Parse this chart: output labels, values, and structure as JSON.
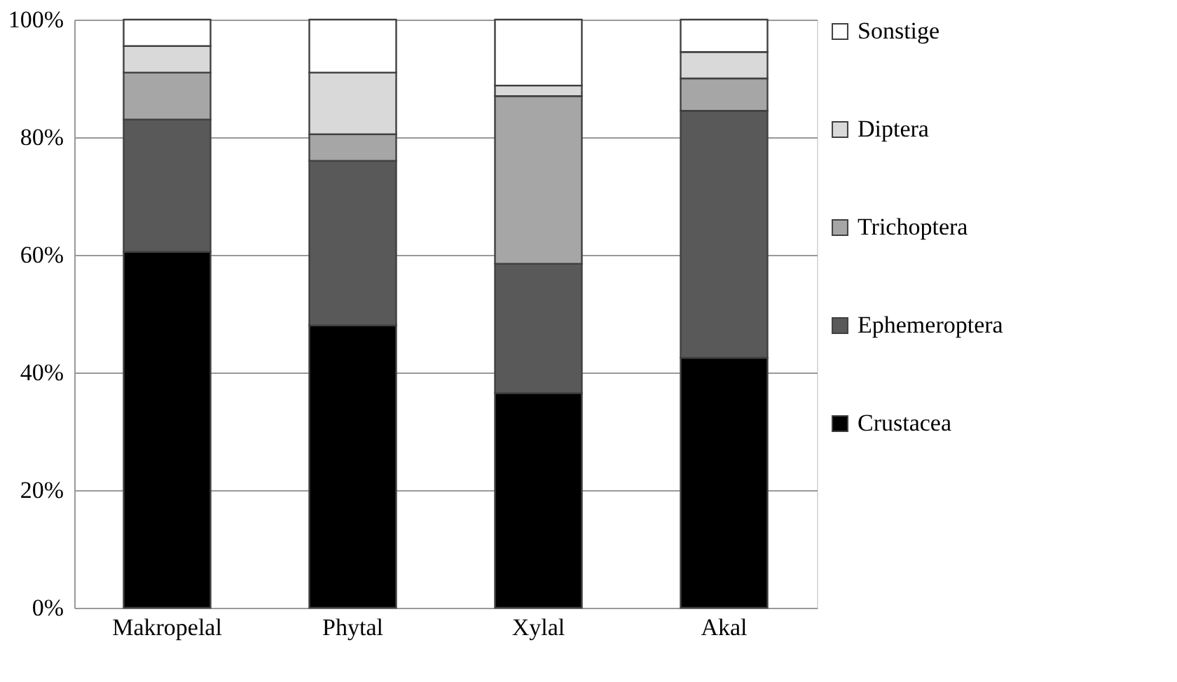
{
  "chart_data": {
    "type": "bar",
    "stacked": true,
    "categories": [
      "Makropelal",
      "Phytal",
      "Xylal",
      "Akal"
    ],
    "series": [
      {
        "name": "Crustacea",
        "color": "#000000",
        "values": [
          60.5,
          48,
          36.5,
          42.5
        ]
      },
      {
        "name": "Ephemeroptera",
        "color": "#595959",
        "values": [
          22.5,
          28,
          22,
          42
        ]
      },
      {
        "name": "Trichoptera",
        "color": "#a6a6a6",
        "values": [
          8,
          4.5,
          28.5,
          5.5
        ]
      },
      {
        "name": "Diptera",
        "color": "#d9d9d9",
        "values": [
          4.5,
          10.5,
          1.8,
          4.5
        ]
      },
      {
        "name": "Sonstige",
        "color": "#ffffff",
        "values": [
          4.5,
          9,
          11.2,
          5.5
        ]
      }
    ],
    "ylim": [
      0,
      100
    ],
    "yticks": [
      {
        "value": 0,
        "label": "0%"
      },
      {
        "value": 20,
        "label": "20%"
      },
      {
        "value": 40,
        "label": "40%"
      },
      {
        "value": 60,
        "label": "60%"
      },
      {
        "value": 80,
        "label": "80%"
      },
      {
        "value": 100,
        "label": "100%"
      }
    ],
    "grid": "y",
    "legend": "right"
  }
}
